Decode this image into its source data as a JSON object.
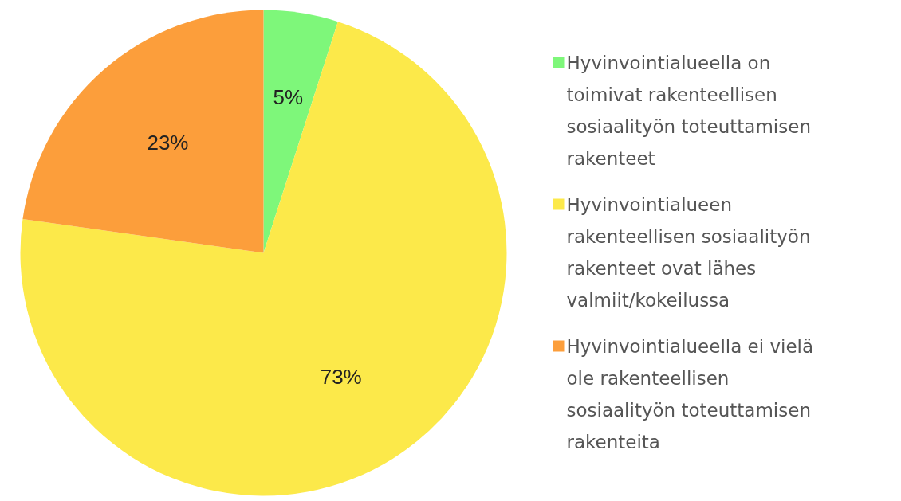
{
  "chart_data": {
    "type": "pie",
    "categories": [
      "Hyvinvointialueella on toimivat rakenteellisen sosiaalityön toteuttamisen rakenteet",
      "Hyvinvointialueen rakenteellisen sosiaalityön rakenteet ovat lähes valmiit/kokeilussa",
      "Hyvinvointialueella ei vielä ole rakenteellisen sosiaalityön toteuttamisen rakenteita"
    ],
    "values": [
      5,
      73,
      23
    ],
    "colors": [
      "#7ef77a",
      "#fce94a",
      "#fc9e3b"
    ],
    "value_labels": [
      "5%",
      "73%",
      "23%"
    ],
    "legend": "right"
  }
}
